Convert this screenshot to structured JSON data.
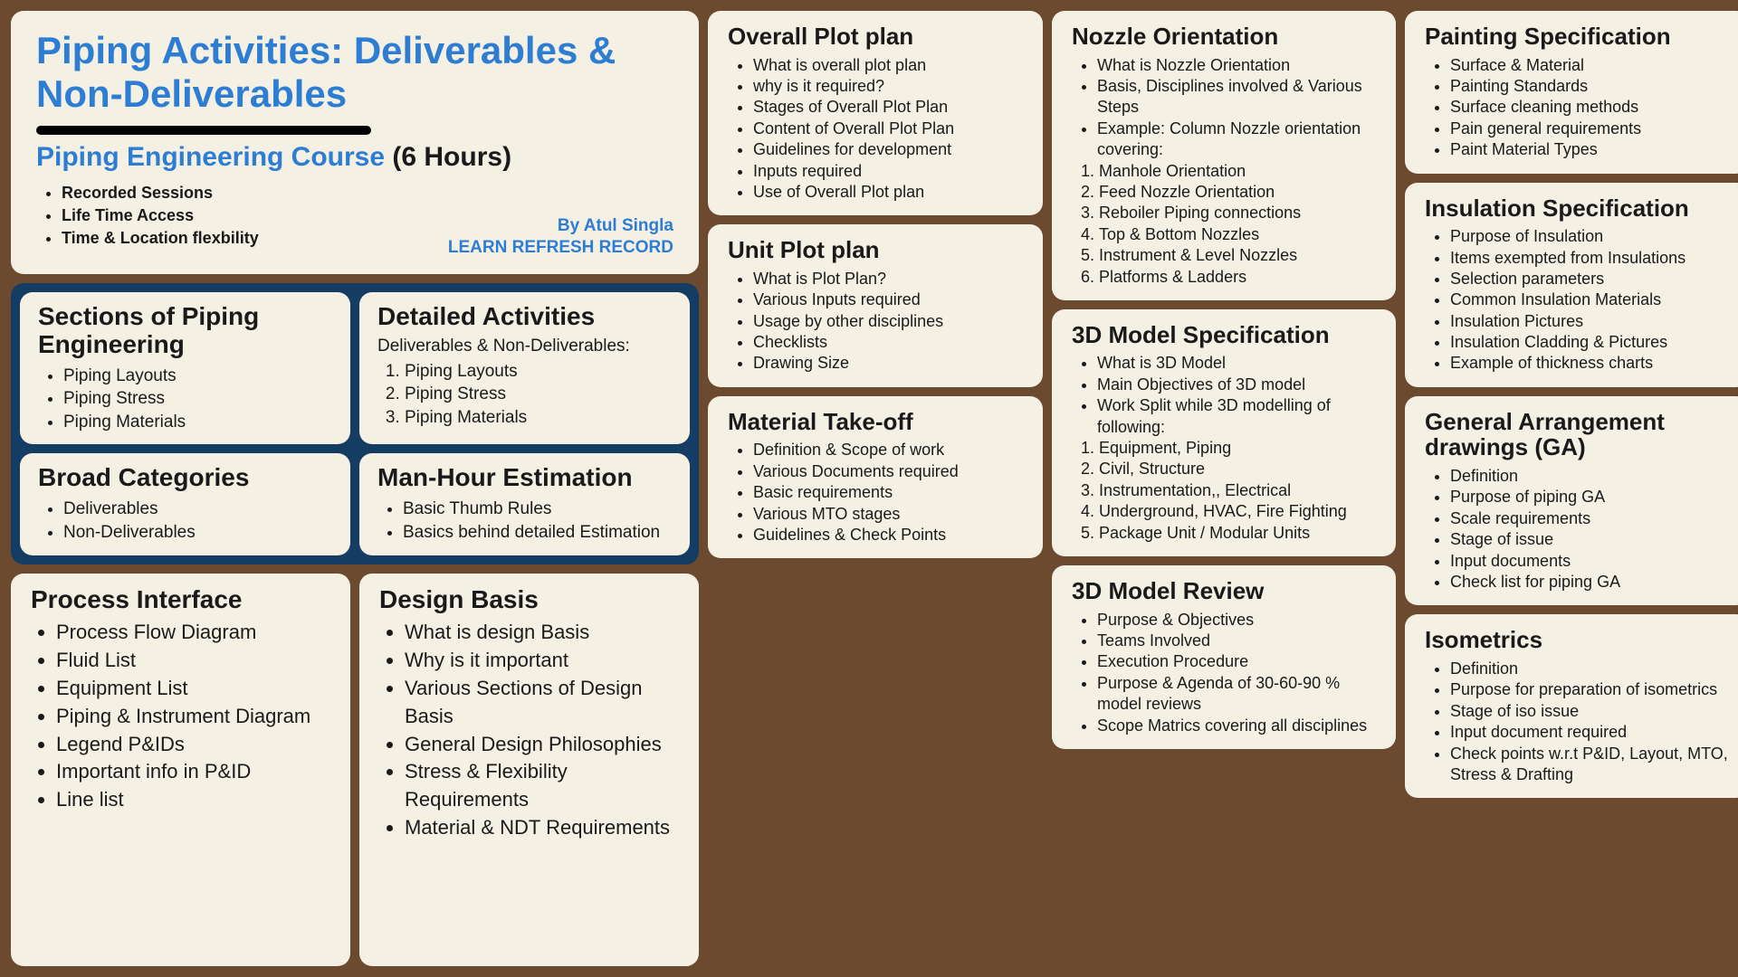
{
  "header": {
    "title": "Piping Activities: Deliverables & Non-Deliverables",
    "course_prefix": "Piping Engineering Course",
    "course_suffix": " (6 Hours)",
    "features": [
      "Recorded Sessions",
      "Life Time Access",
      "Time & Location flexbility"
    ],
    "author": "By Atul Singla",
    "tagline": "LEARN REFRESH RECORD"
  },
  "navy": {
    "sections": {
      "title": "Sections of Piping Engineering",
      "items": [
        "Piping Layouts",
        "Piping Stress",
        "Piping Materials"
      ]
    },
    "detailed": {
      "title": "Detailed Activities",
      "sub": "Deliverables & Non-Deliverables:",
      "items": [
        "Piping Layouts",
        "Piping Stress",
        "Piping Materials"
      ]
    },
    "broad": {
      "title": "Broad Categories",
      "items": [
        "Deliverables",
        "Non-Deliverables"
      ]
    },
    "manhour": {
      "title": "Man-Hour Estimation",
      "items": [
        "Basic Thumb Rules",
        "Basics behind detailed Estimation"
      ]
    }
  },
  "process": {
    "title": "Process Interface",
    "items": [
      "Process Flow Diagram",
      "Fluid List",
      "Equipment List",
      "Piping & Instrument Diagram",
      "Legend P&IDs",
      "Important info in P&ID",
      "Line list"
    ]
  },
  "design": {
    "title": "Design Basis",
    "items": [
      "What is design Basis",
      "Why is it important",
      "Various Sections of Design Basis",
      "General Design Philosophies",
      "Stress & Flexibility Requirements",
      "Material & NDT Requirements"
    ]
  },
  "overall": {
    "title": "Overall Plot plan",
    "items": [
      "What is overall plot plan",
      "why is it required?",
      "Stages of Overall Plot Plan",
      "Content of Overall Plot Plan",
      "Guidelines for development",
      "Inputs required",
      "Use of Overall Plot plan"
    ]
  },
  "unit": {
    "title": "Unit Plot plan",
    "items": [
      "What is Plot Plan?",
      "Various Inputs required",
      "Usage by other disciplines",
      "Checklists",
      "Drawing Size"
    ]
  },
  "mto": {
    "title": "Material Take-off",
    "items": [
      "Definition & Scope of work",
      "Various Documents required",
      "Basic requirements",
      "Various MTO stages",
      "Guidelines & Check Points"
    ]
  },
  "nozzle": {
    "title": "Nozzle Orientation",
    "items": [
      "What is Nozzle Orientation",
      "Basis, Disciplines involved & Various Steps",
      "Example: Column Nozzle orientation covering:"
    ],
    "olitems": [
      "Manhole Orientation",
      "Feed Nozzle Orientation",
      " Reboiler Piping connections",
      "Top & Bottom Nozzles",
      "Instrument & Level Nozzles",
      "Platforms & Ladders"
    ]
  },
  "model3d": {
    "title": "3D Model Specification",
    "items": [
      "What is 3D Model",
      "Main Objectives of 3D model",
      "Work Split while 3D modelling of following:"
    ],
    "olitems": [
      "Equipment, Piping",
      "Civil, Structure",
      "Instrumentation,, Electrical",
      "Underground, HVAC, Fire Fighting",
      "Package Unit / Modular Units"
    ]
  },
  "review": {
    "title": "3D Model Review",
    "items": [
      "Purpose & Objectives",
      "Teams Involved",
      "Execution Procedure",
      "Purpose & Agenda of 30-60-90 % model reviews",
      "Scope Matrics covering all disciplines"
    ]
  },
  "painting": {
    "title": "Painting Specification",
    "items": [
      "Surface & Material",
      "Painting Standards",
      "Surface cleaning methods",
      "Pain general requirements",
      "Paint Material Types"
    ]
  },
  "insulation": {
    "title": "Insulation Specification",
    "items": [
      "Purpose of Insulation",
      "Items exempted from Insulations",
      "Selection parameters",
      "Common Insulation Materials",
      "Insulation Pictures",
      "Insulation Cladding & Pictures",
      "Example of thickness charts"
    ]
  },
  "ga": {
    "title": "General Arrangement drawings (GA)",
    "items": [
      "Definition",
      "Purpose of piping GA",
      "Scale requirements",
      "Stage of issue",
      "Input documents",
      "Check list for piping GA"
    ]
  },
  "iso": {
    "title": "Isometrics",
    "items": [
      "Definition",
      "Purpose for preparation of isometrics",
      "Stage of iso issue",
      "Input document required",
      "Check points w.r.t P&ID, Layout, MTO, Stress & Drafting"
    ]
  }
}
